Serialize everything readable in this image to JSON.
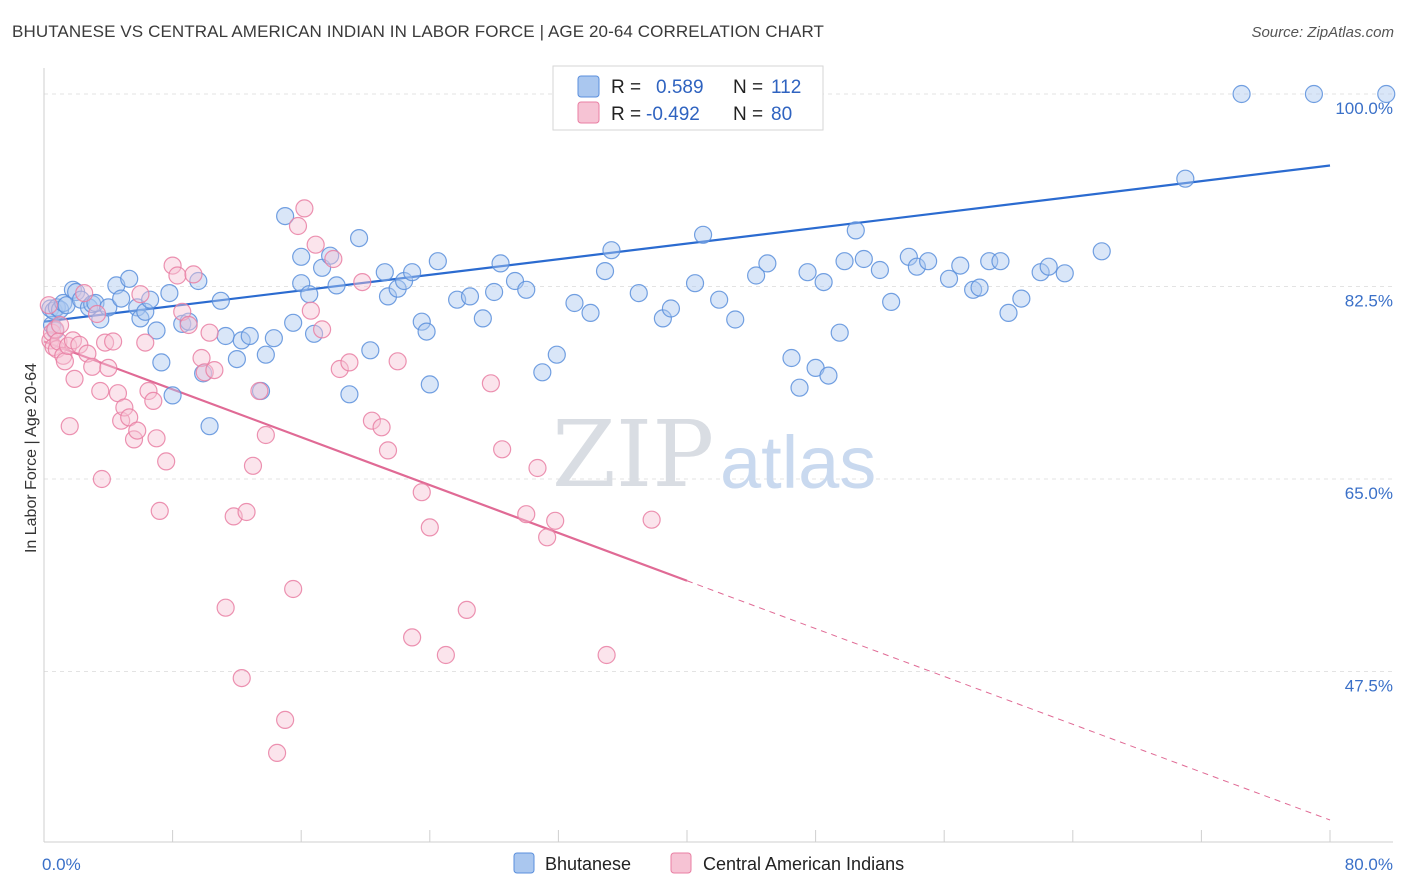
{
  "header": {
    "title": "BHUTANESE VS CENTRAL AMERICAN INDIAN IN LABOR FORCE | AGE 20-64 CORRELATION CHART",
    "source": "Source: ZipAtlas.com"
  },
  "watermark": {
    "zip": "ZIP",
    "atlas": "atlas"
  },
  "legend_box": {
    "rows": [
      {
        "r_label": "R =",
        "r_value": "0.589",
        "n_label": "N =",
        "n_value": "112",
        "color": "#8fb4e8"
      },
      {
        "r_label": "R =",
        "r_value": "-0.492",
        "n_label": "N =",
        "n_value": "80",
        "color": "#f2a9c2"
      }
    ]
  },
  "chart_data": {
    "type": "scatter",
    "title": "BHUTANESE VS CENTRAL AMERICAN INDIAN IN LABOR FORCE | AGE 20-64 CORRELATION CHART",
    "ylabel": "In Labor Force | Age 20-64",
    "xlabel": "",
    "xlim": [
      0,
      80
    ],
    "ylim": [
      32,
      102
    ],
    "x_tick_labels": [
      "0.0%",
      "80.0%"
    ],
    "y_ticks": [
      100,
      82.5,
      65,
      47.5
    ],
    "y_tick_labels": [
      "100.0%",
      "82.5%",
      "65.0%",
      "47.5%"
    ],
    "grid": true,
    "legend_position": "bottom",
    "series": [
      {
        "name": "Bhutanese",
        "color": "#5b8fdc",
        "fill": "#aac7ef",
        "trend": {
          "x": [
            0,
            80
          ],
          "y": [
            79.3,
            93.5
          ],
          "dashed_from": null
        },
        "points": [
          [
            0.4,
            80.5
          ],
          [
            0.5,
            79.0
          ],
          [
            0.6,
            80.3
          ],
          [
            0.7,
            78.5
          ],
          [
            0.8,
            80.6
          ],
          [
            1.0,
            80.4
          ],
          [
            1.2,
            81.0
          ],
          [
            1.4,
            80.8
          ],
          [
            1.8,
            82.2
          ],
          [
            2.0,
            82.0
          ],
          [
            2.3,
            81.3
          ],
          [
            2.8,
            80.6
          ],
          [
            3.0,
            80.9
          ],
          [
            3.2,
            81.0
          ],
          [
            3.5,
            79.5
          ],
          [
            4.0,
            80.6
          ],
          [
            4.5,
            82.6
          ],
          [
            4.8,
            81.4
          ],
          [
            5.3,
            83.2
          ],
          [
            5.8,
            80.6
          ],
          [
            6.0,
            79.6
          ],
          [
            6.3,
            80.2
          ],
          [
            6.6,
            81.3
          ],
          [
            7.0,
            78.5
          ],
          [
            7.3,
            75.6
          ],
          [
            7.8,
            81.9
          ],
          [
            8.0,
            72.6
          ],
          [
            8.6,
            79.1
          ],
          [
            9.0,
            79.3
          ],
          [
            9.6,
            83.0
          ],
          [
            9.9,
            74.6
          ],
          [
            10.3,
            69.8
          ],
          [
            11.0,
            81.2
          ],
          [
            11.3,
            78.0
          ],
          [
            12.0,
            75.9
          ],
          [
            12.3,
            77.6
          ],
          [
            12.8,
            78.0
          ],
          [
            13.5,
            73.0
          ],
          [
            13.8,
            76.3
          ],
          [
            14.3,
            77.8
          ],
          [
            15.0,
            88.9
          ],
          [
            15.5,
            79.2
          ],
          [
            16.0,
            85.2
          ],
          [
            16.0,
            82.8
          ],
          [
            16.5,
            81.8
          ],
          [
            16.8,
            78.2
          ],
          [
            17.3,
            84.2
          ],
          [
            17.8,
            85.3
          ],
          [
            18.2,
            82.6
          ],
          [
            19.0,
            72.7
          ],
          [
            19.6,
            86.9
          ],
          [
            20.3,
            76.7
          ],
          [
            21.2,
            83.8
          ],
          [
            21.4,
            81.6
          ],
          [
            22.0,
            82.3
          ],
          [
            22.4,
            83.0
          ],
          [
            22.9,
            83.8
          ],
          [
            23.5,
            79.3
          ],
          [
            23.8,
            78.4
          ],
          [
            24.0,
            73.6
          ],
          [
            24.5,
            84.8
          ],
          [
            25.7,
            81.3
          ],
          [
            26.5,
            81.6
          ],
          [
            27.3,
            79.6
          ],
          [
            28.0,
            82.0
          ],
          [
            28.4,
            84.6
          ],
          [
            29.3,
            83.0
          ],
          [
            30.0,
            82.2
          ],
          [
            31.0,
            74.7
          ],
          [
            31.9,
            76.3
          ],
          [
            33.0,
            81.0
          ],
          [
            34.0,
            80.1
          ],
          [
            34.9,
            83.9
          ],
          [
            35.3,
            85.8
          ],
          [
            37.0,
            81.9
          ],
          [
            38.5,
            79.6
          ],
          [
            39.0,
            80.5
          ],
          [
            40.5,
            82.8
          ],
          [
            41.0,
            87.2
          ],
          [
            42.0,
            81.3
          ],
          [
            43.0,
            79.5
          ],
          [
            44.3,
            83.5
          ],
          [
            45.0,
            84.6
          ],
          [
            46.5,
            76.0
          ],
          [
            47.0,
            73.3
          ],
          [
            47.5,
            83.8
          ],
          [
            48.0,
            75.1
          ],
          [
            48.5,
            82.9
          ],
          [
            48.8,
            74.4
          ],
          [
            49.5,
            78.3
          ],
          [
            49.8,
            84.8
          ],
          [
            50.5,
            87.6
          ],
          [
            51.0,
            85.0
          ],
          [
            52.0,
            84.0
          ],
          [
            52.7,
            81.1
          ],
          [
            53.8,
            85.2
          ],
          [
            54.3,
            84.3
          ],
          [
            55.0,
            84.8
          ],
          [
            56.3,
            83.2
          ],
          [
            57.0,
            84.4
          ],
          [
            57.8,
            82.2
          ],
          [
            58.2,
            82.4
          ],
          [
            58.8,
            84.8
          ],
          [
            59.5,
            84.8
          ],
          [
            60.0,
            80.1
          ],
          [
            60.8,
            81.4
          ],
          [
            62.0,
            83.8
          ],
          [
            62.5,
            84.3
          ],
          [
            63.5,
            83.7
          ],
          [
            65.8,
            85.7
          ],
          [
            71.0,
            92.3
          ],
          [
            74.5,
            100.0
          ],
          [
            79.0,
            100.0
          ],
          [
            83.5,
            100.0
          ]
        ]
      },
      {
        "name": "Central American Indians",
        "color": "#e97fa3",
        "fill": "#f6c3d4",
        "trend": {
          "x": [
            0,
            80
          ],
          "y": [
            77.5,
            34.0
          ],
          "dashed_from": 40
        },
        "points": [
          [
            0.3,
            80.8
          ],
          [
            0.4,
            77.6
          ],
          [
            0.5,
            78.3
          ],
          [
            0.6,
            77.0
          ],
          [
            0.7,
            78.6
          ],
          [
            0.8,
            76.8
          ],
          [
            0.9,
            77.5
          ],
          [
            1.0,
            79.0
          ],
          [
            1.2,
            76.2
          ],
          [
            1.3,
            75.7
          ],
          [
            1.5,
            77.1
          ],
          [
            1.6,
            69.8
          ],
          [
            1.8,
            77.6
          ],
          [
            1.9,
            74.1
          ],
          [
            2.2,
            77.2
          ],
          [
            2.5,
            81.9
          ],
          [
            2.7,
            76.4
          ],
          [
            3.0,
            75.2
          ],
          [
            3.3,
            80.0
          ],
          [
            3.5,
            73.0
          ],
          [
            3.6,
            65.0
          ],
          [
            3.8,
            77.4
          ],
          [
            4.0,
            75.1
          ],
          [
            4.3,
            77.5
          ],
          [
            4.6,
            72.8
          ],
          [
            4.8,
            70.3
          ],
          [
            5.0,
            71.5
          ],
          [
            5.3,
            70.6
          ],
          [
            5.6,
            68.6
          ],
          [
            5.8,
            69.4
          ],
          [
            6.0,
            81.8
          ],
          [
            6.3,
            77.4
          ],
          [
            6.5,
            73.0
          ],
          [
            6.8,
            72.1
          ],
          [
            7.0,
            68.7
          ],
          [
            7.2,
            62.1
          ],
          [
            7.6,
            66.6
          ],
          [
            8.0,
            84.4
          ],
          [
            8.3,
            83.5
          ],
          [
            8.6,
            80.2
          ],
          [
            9.0,
            79.0
          ],
          [
            9.3,
            83.6
          ],
          [
            9.8,
            76.0
          ],
          [
            10.0,
            74.7
          ],
          [
            10.3,
            78.3
          ],
          [
            10.6,
            74.9
          ],
          [
            11.3,
            53.3
          ],
          [
            11.8,
            61.6
          ],
          [
            12.3,
            46.9
          ],
          [
            12.6,
            62.0
          ],
          [
            13.0,
            66.2
          ],
          [
            13.4,
            73.0
          ],
          [
            13.8,
            69.0
          ],
          [
            14.5,
            40.1
          ],
          [
            15.0,
            43.1
          ],
          [
            15.5,
            55.0
          ],
          [
            15.8,
            88.0
          ],
          [
            16.2,
            89.6
          ],
          [
            16.6,
            80.3
          ],
          [
            16.9,
            86.3
          ],
          [
            17.3,
            78.6
          ],
          [
            18.0,
            85.0
          ],
          [
            18.4,
            75.0
          ],
          [
            19.0,
            75.6
          ],
          [
            19.8,
            82.9
          ],
          [
            20.4,
            70.3
          ],
          [
            21.0,
            69.7
          ],
          [
            21.4,
            67.6
          ],
          [
            22.0,
            75.7
          ],
          [
            22.9,
            50.6
          ],
          [
            23.5,
            63.8
          ],
          [
            24.0,
            60.6
          ],
          [
            25.0,
            49.0
          ],
          [
            26.3,
            53.1
          ],
          [
            27.8,
            73.7
          ],
          [
            28.5,
            67.7
          ],
          [
            30.0,
            61.8
          ],
          [
            30.7,
            66.0
          ],
          [
            31.3,
            59.7
          ],
          [
            31.8,
            61.2
          ],
          [
            35.0,
            49.0
          ],
          [
            37.8,
            61.3
          ]
        ]
      }
    ]
  }
}
